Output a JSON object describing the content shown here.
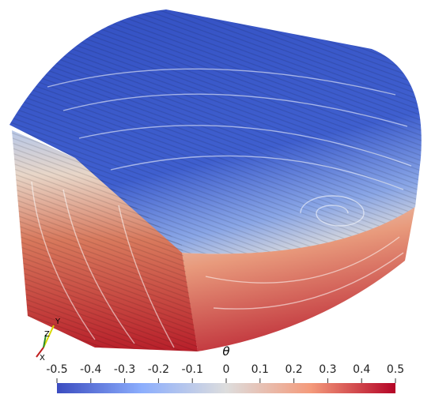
{
  "colorbar": {
    "title": "θ",
    "range": [
      -0.5,
      0.5
    ],
    "ticks": [
      -0.5,
      -0.4,
      -0.3,
      -0.2,
      -0.1,
      0,
      0.1,
      0.2,
      0.3,
      0.4,
      0.5
    ]
  },
  "axes_triad": {
    "x": "X",
    "y": "Y",
    "z": "Z"
  }
}
